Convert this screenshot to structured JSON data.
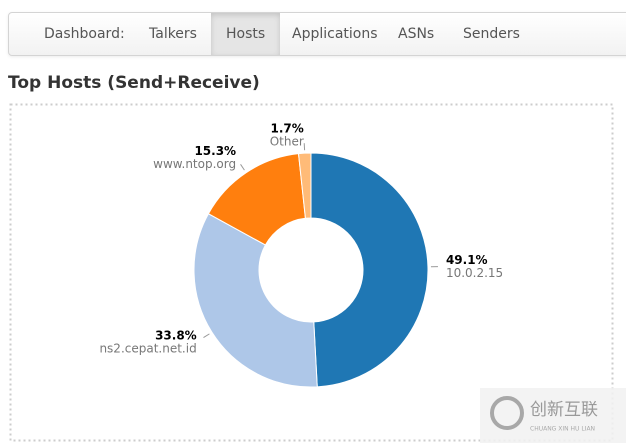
{
  "nav": {
    "brand": "Dashboard:",
    "items": [
      "Talkers",
      "Hosts",
      "Applications",
      "ASNs",
      "Senders"
    ],
    "active": 1
  },
  "chart_data": {
    "type": "pie",
    "title": "Top Hosts (Send+Receive)",
    "categories": [
      "10.0.2.15",
      "ns2.cepat.net.id",
      "www.ntop.org",
      "Other"
    ],
    "values": [
      49.1,
      33.8,
      15.3,
      1.7
    ],
    "value_labels": [
      "49.1%",
      "33.8%",
      "15.3%",
      "1.7%"
    ],
    "colors": [
      "#1f77b4",
      "#aec7e8",
      "#ff7f0e",
      "#ffbb78"
    ],
    "donut": true
  },
  "watermark": {
    "title": "创新互联",
    "subtitle": "CHUANG XIN HU LIAN"
  }
}
